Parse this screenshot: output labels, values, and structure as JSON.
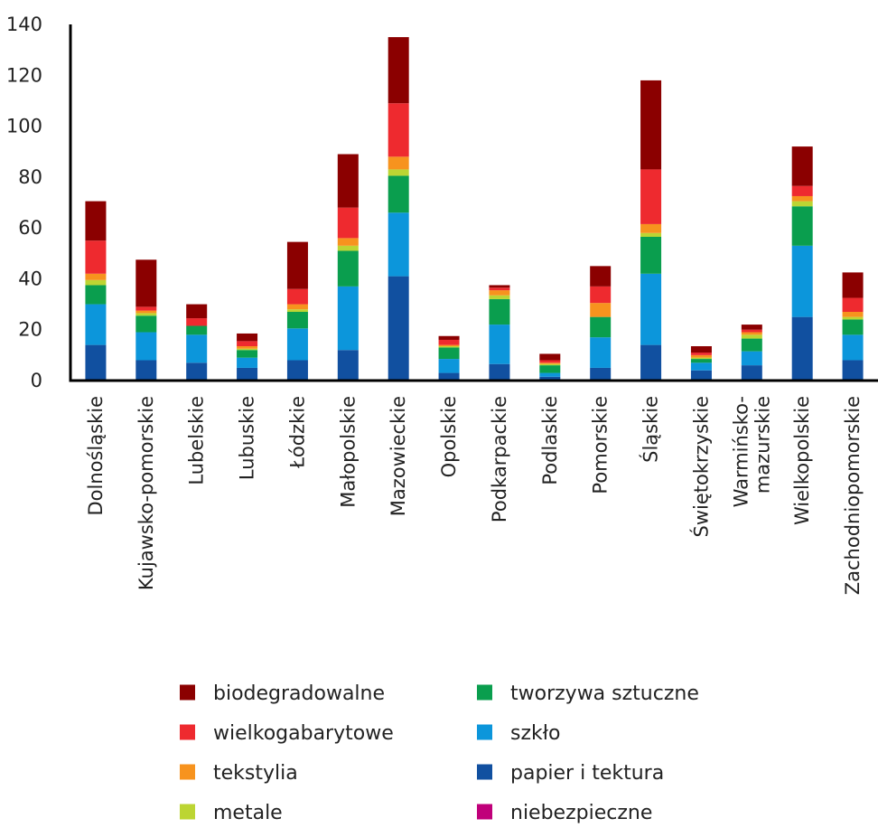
{
  "chart_data": {
    "type": "bar",
    "stacked": true,
    "categories": [
      "Dolnośląskie",
      "Kujawsko-pomorskie",
      "Lubelskie",
      "Lubuskie",
      "Łódzkie",
      "Małopolskie",
      "Mazowieckie",
      "Opolskie",
      "Podkarpackie",
      "Podlaskie",
      "Pomorskie",
      "Śląskie",
      "Świętokrzyskie",
      "Warmińsko-mazurskie",
      "Wielkopolskie",
      "Zachodniopomorskie"
    ],
    "category_lines": [
      [
        "Dolnośląskie"
      ],
      [
        "Kujawsko-pomorskie"
      ],
      [
        "Lubelskie"
      ],
      [
        "Lubuskie"
      ],
      [
        "Łódzkie"
      ],
      [
        "Małopolskie"
      ],
      [
        "Mazowieckie"
      ],
      [
        "Opolskie"
      ],
      [
        "Podkarpackie"
      ],
      [
        "Podlaskie"
      ],
      [
        "Pomorskie"
      ],
      [
        "Śląskie"
      ],
      [
        "Świętokrzyskie"
      ],
      [
        "Warmińsko-",
        "mazurskie"
      ],
      [
        "Wielkopolskie"
      ],
      [
        "Zachodniopomorskie"
      ]
    ],
    "series": [
      {
        "name": "papier i tektura",
        "color": "#1150a0",
        "values": [
          14,
          8,
          7,
          5,
          8,
          12,
          41,
          3,
          6.5,
          1.5,
          5,
          14,
          4,
          6,
          25,
          8
        ]
      },
      {
        "name": "szkło",
        "color": "#0c96db",
        "values": [
          16,
          11,
          11,
          4,
          12.5,
          25,
          25,
          5.5,
          15.5,
          1.5,
          12,
          28,
          3,
          5.5,
          28,
          10
        ]
      },
      {
        "name": "tworzywa sztuczne",
        "color": "#0a9e4e",
        "values": [
          7.5,
          6.5,
          3.5,
          3,
          6.5,
          14,
          14.5,
          4.5,
          10,
          3,
          8,
          14.5,
          1.5,
          5,
          15.5,
          6
        ]
      },
      {
        "name": "metale",
        "color": "#bcd533",
        "values": [
          2,
          1,
          0,
          0.5,
          1,
          2,
          2.5,
          0.5,
          1.5,
          0.5,
          0,
          1.5,
          0.5,
          1.5,
          2,
          1
        ]
      },
      {
        "name": "tekstylia",
        "color": "#f7931e",
        "values": [
          2.5,
          1,
          0,
          1,
          2,
          3,
          5,
          0.5,
          2,
          0.5,
          5.5,
          3.5,
          1,
          1,
          2,
          2
        ]
      },
      {
        "name": "wielkogabarytowe",
        "color": "#ee2a2f",
        "values": [
          13,
          1.5,
          3,
          2,
          6,
          12,
          21,
          2,
          1,
          1,
          6.5,
          21.5,
          1,
          1,
          4,
          5.5
        ]
      },
      {
        "name": "biodegradowalne",
        "color": "#8b0000",
        "values": [
          15.5,
          18.5,
          5.5,
          3,
          18.5,
          21,
          26,
          1.5,
          1,
          2.5,
          8,
          35,
          2.5,
          2,
          15.5,
          10
        ]
      },
      {
        "name": "niebezpieczne",
        "color": "#c0007a",
        "values": [
          0,
          0,
          0,
          0,
          0,
          0,
          0,
          0,
          0,
          0,
          0,
          0,
          0,
          0,
          0,
          0
        ]
      }
    ],
    "ylim": [
      0,
      140
    ],
    "yticks": [
      0,
      20,
      40,
      60,
      80,
      100,
      120,
      140
    ],
    "xlabel": "",
    "ylabel": "",
    "title": "",
    "legend_position": "bottom",
    "grid": false
  },
  "legend": {
    "items": [
      {
        "label": "biodegradowalne",
        "color": "#8b0000"
      },
      {
        "label": "tworzywa sztuczne",
        "color": "#0a9e4e"
      },
      {
        "label": "wielkogabarytowe",
        "color": "#ee2a2f"
      },
      {
        "label": "szkło",
        "color": "#0c96db"
      },
      {
        "label": "tekstylia",
        "color": "#f7931e"
      },
      {
        "label": "papier i tektura",
        "color": "#1150a0"
      },
      {
        "label": "metale",
        "color": "#bcd533"
      },
      {
        "label": "niebezpieczne",
        "color": "#c0007a"
      }
    ]
  }
}
